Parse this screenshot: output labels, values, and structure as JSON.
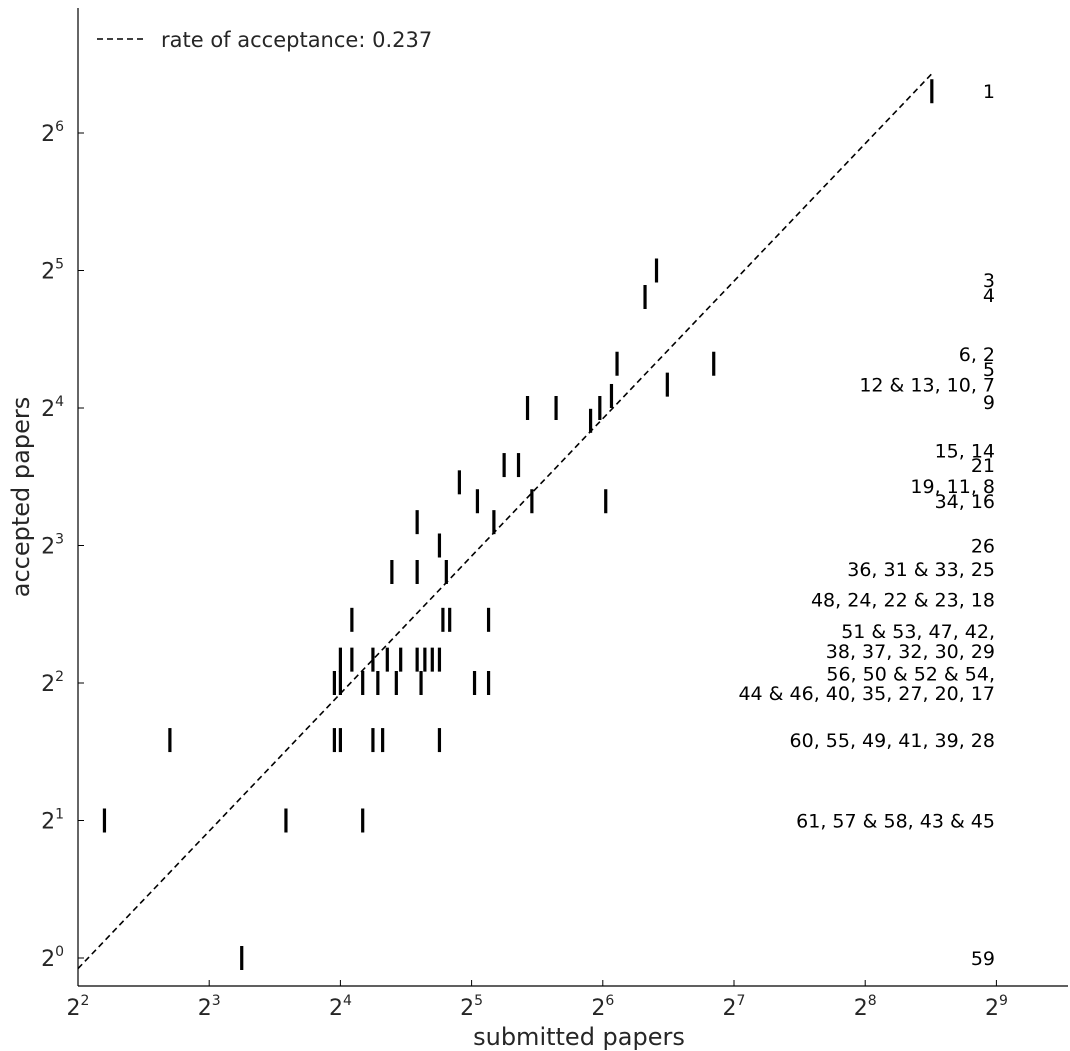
{
  "chart_data": {
    "type": "scatter",
    "xlabel": "submitted papers",
    "ylabel": "accepted papers",
    "x_scale": "log2",
    "y_scale": "log2",
    "xlim": [
      4,
      512
    ],
    "ylim": [
      0.83,
      82
    ],
    "x_ticks": [
      {
        "base": "2",
        "exp": "2"
      },
      {
        "base": "2",
        "exp": "3"
      },
      {
        "base": "2",
        "exp": "4"
      },
      {
        "base": "2",
        "exp": "5"
      },
      {
        "base": "2",
        "exp": "6"
      },
      {
        "base": "2",
        "exp": "7"
      },
      {
        "base": "2",
        "exp": "8"
      },
      {
        "base": "2",
        "exp": "9"
      }
    ],
    "y_ticks": [
      {
        "base": "2",
        "exp": "0"
      },
      {
        "base": "2",
        "exp": "1"
      },
      {
        "base": "2",
        "exp": "2"
      },
      {
        "base": "2",
        "exp": "3"
      },
      {
        "base": "2",
        "exp": "4"
      },
      {
        "base": "2",
        "exp": "5"
      },
      {
        "base": "2",
        "exp": "6"
      }
    ],
    "marker": "vertical-bar",
    "color": "#000000",
    "points": [
      {
        "x": 364,
        "y": 79
      },
      {
        "x": 85,
        "y": 32
      },
      {
        "x": 80,
        "y": 28
      },
      {
        "x": 115,
        "y": 20
      },
      {
        "x": 69,
        "y": 20
      },
      {
        "x": 90,
        "y": 18
      },
      {
        "x": 67,
        "y": 17
      },
      {
        "x": 43,
        "y": 16
      },
      {
        "x": 50,
        "y": 16
      },
      {
        "x": 63,
        "y": 16
      },
      {
        "x": 60,
        "y": 15
      },
      {
        "x": 38,
        "y": 12
      },
      {
        "x": 41,
        "y": 12
      },
      {
        "x": 30,
        "y": 11
      },
      {
        "x": 33,
        "y": 10
      },
      {
        "x": 65,
        "y": 10
      },
      {
        "x": 44,
        "y": 10
      },
      {
        "x": 24,
        "y": 9
      },
      {
        "x": 36,
        "y": 9
      },
      {
        "x": 27,
        "y": 8
      },
      {
        "x": 21,
        "y": 7
      },
      {
        "x": 24,
        "y": 7
      },
      {
        "x": 28,
        "y": 7
      },
      {
        "x": 17,
        "y": 5.5
      },
      {
        "x": 27.5,
        "y": 5.5
      },
      {
        "x": 28.5,
        "y": 5.5
      },
      {
        "x": 35,
        "y": 5.5
      },
      {
        "x": 16,
        "y": 4.5
      },
      {
        "x": 17,
        "y": 4.5
      },
      {
        "x": 19,
        "y": 4.5
      },
      {
        "x": 20.5,
        "y": 4.5
      },
      {
        "x": 22,
        "y": 4.5
      },
      {
        "x": 24,
        "y": 4.5
      },
      {
        "x": 25,
        "y": 4.5
      },
      {
        "x": 26,
        "y": 4.5
      },
      {
        "x": 27,
        "y": 4.5
      },
      {
        "x": 15.5,
        "y": 4
      },
      {
        "x": 16,
        "y": 4
      },
      {
        "x": 18,
        "y": 4
      },
      {
        "x": 19.5,
        "y": 4
      },
      {
        "x": 21.5,
        "y": 4
      },
      {
        "x": 24.5,
        "y": 4
      },
      {
        "x": 32.5,
        "y": 4
      },
      {
        "x": 35,
        "y": 4
      },
      {
        "x": 6.5,
        "y": 3
      },
      {
        "x": 15.5,
        "y": 3
      },
      {
        "x": 16,
        "y": 3
      },
      {
        "x": 19,
        "y": 3
      },
      {
        "x": 20,
        "y": 3
      },
      {
        "x": 27,
        "y": 3
      },
      {
        "x": 4.6,
        "y": 2
      },
      {
        "x": 12,
        "y": 2
      },
      {
        "x": 18,
        "y": 2
      },
      {
        "x": 9.5,
        "y": 1
      }
    ],
    "reference_line": {
      "label": "rate of acceptance: 0.237",
      "slope": 0.237,
      "style": "dashed"
    },
    "legend_position": "top-left",
    "annotations": [
      {
        "text": "1",
        "y": 79
      },
      {
        "text": "3",
        "y": 30.5
      },
      {
        "text": "4",
        "y": 28.3
      },
      {
        "text": "6, 2",
        "y": 21
      },
      {
        "text": "5",
        "y": 19.5
      },
      {
        "text": "12 & 13, 10, 7",
        "y": 18
      },
      {
        "text": "9",
        "y": 16.5
      },
      {
        "text": "15, 14",
        "y": 12.9
      },
      {
        "text": "21",
        "y": 12
      },
      {
        "text": "19, 11, 8",
        "y": 10.8
      },
      {
        "text": "34, 16",
        "y": 10
      },
      {
        "text": "26",
        "y": 8
      },
      {
        "text": "36, 31 & 33, 25",
        "y": 7.1
      },
      {
        "text": "48, 24, 22 & 23, 18",
        "y": 6.1
      },
      {
        "text": "51 & 53, 47, 42,",
        "y": 5.2
      },
      {
        "text": "38, 37, 32, 30, 29",
        "y": 4.7
      },
      {
        "text": "56, 50 & 52 & 54,",
        "y": 4.2
      },
      {
        "text": "44 & 46, 40, 35, 27, 20, 17",
        "y": 3.8
      },
      {
        "text": "60, 55, 49, 41, 39, 28",
        "y": 3
      },
      {
        "text": "61, 57 & 58, 43 & 45",
        "y": 2
      },
      {
        "text": "59",
        "y": 1
      }
    ]
  }
}
